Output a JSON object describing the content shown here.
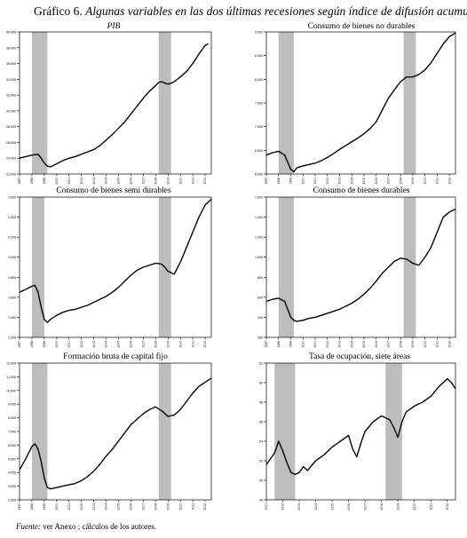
{
  "figure": {
    "title_prefix": "Gráfico 6.",
    "title_text": "Algunas variables en las dos últimas recesiones según índice de difusión acumulado",
    "footnote_label": "Fuente:",
    "footnote_text": "ver Anexo ; cálculos de los autores."
  },
  "colors": {
    "line": "#000000",
    "recession_band": "#bdbdbd",
    "frame": "#000000"
  },
  "chart_data": [
    {
      "type": "line",
      "title": "PIB",
      "title_italic": true,
      "ylim": [
        22000,
        40000
      ],
      "yticks": [
        "22.000",
        "24.000",
        "26.000",
        "28.000",
        "30.000",
        "32.000",
        "34.000",
        "36.000",
        "38.000",
        "40.000"
      ],
      "xlim": [
        1997,
        2012.5
      ],
      "xticks": [
        "1997",
        "1998",
        "1999",
        "2000",
        "2001",
        "2002",
        "2003",
        "2004",
        "2005",
        "2006",
        "2007",
        "2008",
        "2009",
        "2010",
        "2011",
        "2012"
      ],
      "recessions": [
        [
          1998.0,
          1999.25
        ],
        [
          2008.25,
          2009.25
        ]
      ],
      "x": [
        1997.0,
        1997.5,
        1998.0,
        1998.5,
        1998.75,
        1999.0,
        1999.25,
        1999.5,
        2000.0,
        2000.5,
        2001.0,
        2001.5,
        2002.0,
        2002.5,
        2003.0,
        2003.5,
        2004.0,
        2004.5,
        2005.0,
        2005.5,
        2006.0,
        2006.5,
        2007.0,
        2007.5,
        2008.0,
        2008.25,
        2008.5,
        2008.75,
        2009.0,
        2009.25,
        2009.5,
        2010.0,
        2010.5,
        2011.0,
        2011.5,
        2012.0,
        2012.25
      ],
      "y": [
        24000,
        24200,
        24400,
        24500,
        24000,
        23400,
        23000,
        22900,
        23300,
        23700,
        24000,
        24200,
        24500,
        24800,
        25100,
        25600,
        26300,
        27000,
        27800,
        28600,
        29600,
        30600,
        31600,
        32500,
        33200,
        33600,
        33700,
        33500,
        33400,
        33500,
        33700,
        34300,
        35000,
        36000,
        37200,
        38300,
        38500
      ]
    },
    {
      "type": "line",
      "title": "Consumo de bienes no durables",
      "title_italic": false,
      "ylim": [
        6000,
        9000
      ],
      "yticks": [
        "6.000",
        "6.500",
        "7.000",
        "7.500",
        "8.000",
        "8.500",
        "9.000"
      ],
      "xlim": [
        1997,
        2012.5
      ],
      "xticks": [
        "1997",
        "1998",
        "1999",
        "2000",
        "2001",
        "2002",
        "2003",
        "2004",
        "2005",
        "2006",
        "2007",
        "2008",
        "2009",
        "2010",
        "2011",
        "2012"
      ],
      "recessions": [
        [
          1998.0,
          1999.25
        ],
        [
          2008.25,
          2009.25
        ]
      ],
      "x": [
        1997.0,
        1997.5,
        1998.0,
        1998.5,
        1998.75,
        1999.0,
        1999.25,
        1999.5,
        2000.0,
        2000.5,
        2001.0,
        2001.5,
        2002.0,
        2002.5,
        2003.0,
        2003.5,
        2004.0,
        2004.5,
        2005.0,
        2005.5,
        2006.0,
        2006.5,
        2007.0,
        2007.5,
        2008.0,
        2008.5,
        2009.0,
        2009.5,
        2010.0,
        2010.5,
        2011.0,
        2011.5,
        2012.0,
        2012.5
      ],
      "y": [
        6400,
        6450,
        6480,
        6400,
        6250,
        6100,
        6050,
        6130,
        6170,
        6200,
        6230,
        6280,
        6350,
        6430,
        6520,
        6600,
        6680,
        6760,
        6850,
        6960,
        7100,
        7350,
        7600,
        7780,
        7950,
        8050,
        8050,
        8100,
        8200,
        8350,
        8550,
        8750,
        8900,
        8980
      ]
    },
    {
      "type": "line",
      "title": "Consumo de bienes semi durables",
      "title_italic": false,
      "ylim": [
        1200,
        2600
      ],
      "yticks": [
        "1.200",
        "1.400",
        "1.600",
        "1.800",
        "2.000",
        "2.200",
        "2.400",
        "2.600"
      ],
      "xlim": [
        1997,
        2012.5
      ],
      "xticks": [
        "1997",
        "1998",
        "1999",
        "2000",
        "2001",
        "2002",
        "2003",
        "2004",
        "2005",
        "2006",
        "2007",
        "2008",
        "2009",
        "2010",
        "2011",
        "2012"
      ],
      "recessions": [
        [
          1998.0,
          1999.0
        ],
        [
          2008.25,
          2009.25
        ]
      ],
      "x": [
        1997.0,
        1997.5,
        1998.0,
        1998.25,
        1998.5,
        1998.75,
        1999.0,
        1999.25,
        1999.5,
        2000.0,
        2000.5,
        2001.0,
        2001.5,
        2002.0,
        2002.5,
        2003.0,
        2003.5,
        2004.0,
        2004.5,
        2005.0,
        2005.5,
        2006.0,
        2006.5,
        2007.0,
        2007.5,
        2008.0,
        2008.5,
        2008.75,
        2009.0,
        2009.5,
        2010.0,
        2010.5,
        2011.0,
        2011.5,
        2012.0,
        2012.5
      ],
      "y": [
        1650,
        1680,
        1710,
        1720,
        1650,
        1500,
        1380,
        1350,
        1380,
        1420,
        1450,
        1470,
        1480,
        1500,
        1520,
        1550,
        1580,
        1610,
        1650,
        1700,
        1760,
        1820,
        1870,
        1900,
        1920,
        1940,
        1930,
        1900,
        1860,
        1830,
        1950,
        2100,
        2250,
        2400,
        2520,
        2580
      ]
    },
    {
      "type": "line",
      "title": "Consumo de bienes durables",
      "title_italic": false,
      "ylim": [
        200,
        1600
      ],
      "yticks": [
        "200",
        "400",
        "600",
        "800",
        "1.000",
        "1.200",
        "1.400",
        "1.600"
      ],
      "xlim": [
        1997,
        2012.5
      ],
      "xticks": [
        "1997",
        "1998",
        "1999",
        "2000",
        "2001",
        "2002",
        "2003",
        "2004",
        "2005",
        "2006",
        "2007",
        "2008",
        "2009",
        "2010",
        "2011",
        "2012"
      ],
      "recessions": [
        [
          1998.0,
          1999.25
        ],
        [
          2008.25,
          2009.25
        ]
      ],
      "x": [
        1997.0,
        1997.5,
        1998.0,
        1998.5,
        1998.75,
        1999.0,
        1999.25,
        1999.5,
        2000.0,
        2000.5,
        2001.0,
        2001.5,
        2002.0,
        2002.5,
        2003.0,
        2003.5,
        2004.0,
        2004.5,
        2005.0,
        2005.5,
        2006.0,
        2006.5,
        2007.0,
        2007.5,
        2008.0,
        2008.5,
        2009.0,
        2009.5,
        2010.0,
        2010.5,
        2011.0,
        2011.5,
        2012.0,
        2012.5
      ],
      "y": [
        560,
        580,
        590,
        560,
        480,
        400,
        370,
        360,
        370,
        390,
        400,
        420,
        440,
        460,
        480,
        510,
        540,
        580,
        630,
        690,
        760,
        840,
        900,
        960,
        990,
        980,
        940,
        920,
        1000,
        1100,
        1250,
        1400,
        1450,
        1480
      ]
    },
    {
      "type": "line",
      "title": "Formación bruta de capital fijo",
      "title_italic": false,
      "ylim": [
        2000,
        12000
      ],
      "yticks": [
        "2.000",
        "3.000",
        "4.000",
        "5.000",
        "6.000",
        "7.000",
        "8.000",
        "9.000",
        "10.000",
        "11.000",
        "12.000"
      ],
      "xlim": [
        1997,
        2012.5
      ],
      "xticks": [
        "1997",
        "1998",
        "1999",
        "2000",
        "2001",
        "2002",
        "2003",
        "2004",
        "2005",
        "2006",
        "2007",
        "2008",
        "2009",
        "2010",
        "2011",
        "2012"
      ],
      "recessions": [
        [
          1998.0,
          1999.25
        ],
        [
          2008.25,
          2009.25
        ]
      ],
      "x": [
        1997.0,
        1997.5,
        1998.0,
        1998.25,
        1998.5,
        1998.75,
        1999.0,
        1999.25,
        1999.5,
        2000.0,
        2000.5,
        2001.0,
        2001.5,
        2002.0,
        2002.5,
        2003.0,
        2003.5,
        2004.0,
        2004.5,
        2005.0,
        2005.5,
        2006.0,
        2006.5,
        2007.0,
        2007.5,
        2008.0,
        2008.5,
        2009.0,
        2009.5,
        2010.0,
        2010.5,
        2011.0,
        2011.5,
        2012.0,
        2012.5
      ],
      "y": [
        4200,
        5000,
        5900,
        6100,
        5700,
        4800,
        3600,
        2900,
        2800,
        2900,
        3000,
        3100,
        3200,
        3400,
        3700,
        4100,
        4600,
        5200,
        5700,
        6300,
        6900,
        7500,
        7900,
        8300,
        8600,
        8800,
        8500,
        8100,
        8200,
        8600,
        9200,
        9800,
        10300,
        10600,
        10900
      ]
    },
    {
      "type": "line",
      "title": "Tasa de ocupación, siete áreas",
      "title_italic": false,
      "ylim": [
        48,
        62
      ],
      "yticks": [
        "48",
        "50",
        "52",
        "54",
        "56",
        "58",
        "60",
        "62"
      ],
      "xlim": [
        2001,
        2012.5
      ],
      "xticks": [
        "2001",
        "2002",
        "2003",
        "2004",
        "2005",
        "2006",
        "2007",
        "2008",
        "2009",
        "2010",
        "2011",
        "2012"
      ],
      "recessions": [
        [
          2001.5,
          2002.75
        ],
        [
          2008.25,
          2009.25
        ]
      ],
      "x": [
        2001.0,
        2001.25,
        2001.5,
        2001.75,
        2002.0,
        2002.25,
        2002.5,
        2002.75,
        2003.0,
        2003.25,
        2003.5,
        2004.0,
        2004.5,
        2005.0,
        2005.5,
        2006.0,
        2006.25,
        2006.5,
        2006.75,
        2007.0,
        2007.5,
        2008.0,
        2008.5,
        2008.75,
        2009.0,
        2009.25,
        2009.5,
        2010.0,
        2010.5,
        2011.0,
        2011.5,
        2012.0,
        2012.25,
        2012.5
      ],
      "y": [
        51.6,
        52.2,
        52.8,
        54.0,
        53.0,
        51.8,
        50.8,
        50.6,
        50.8,
        51.4,
        51.0,
        52.0,
        52.6,
        53.4,
        54.0,
        54.6,
        53.2,
        52.4,
        53.8,
        55.0,
        56.0,
        56.6,
        56.2,
        55.4,
        54.4,
        56.0,
        57.0,
        57.6,
        58.0,
        58.6,
        59.6,
        60.4,
        60.0,
        59.4
      ]
    }
  ]
}
